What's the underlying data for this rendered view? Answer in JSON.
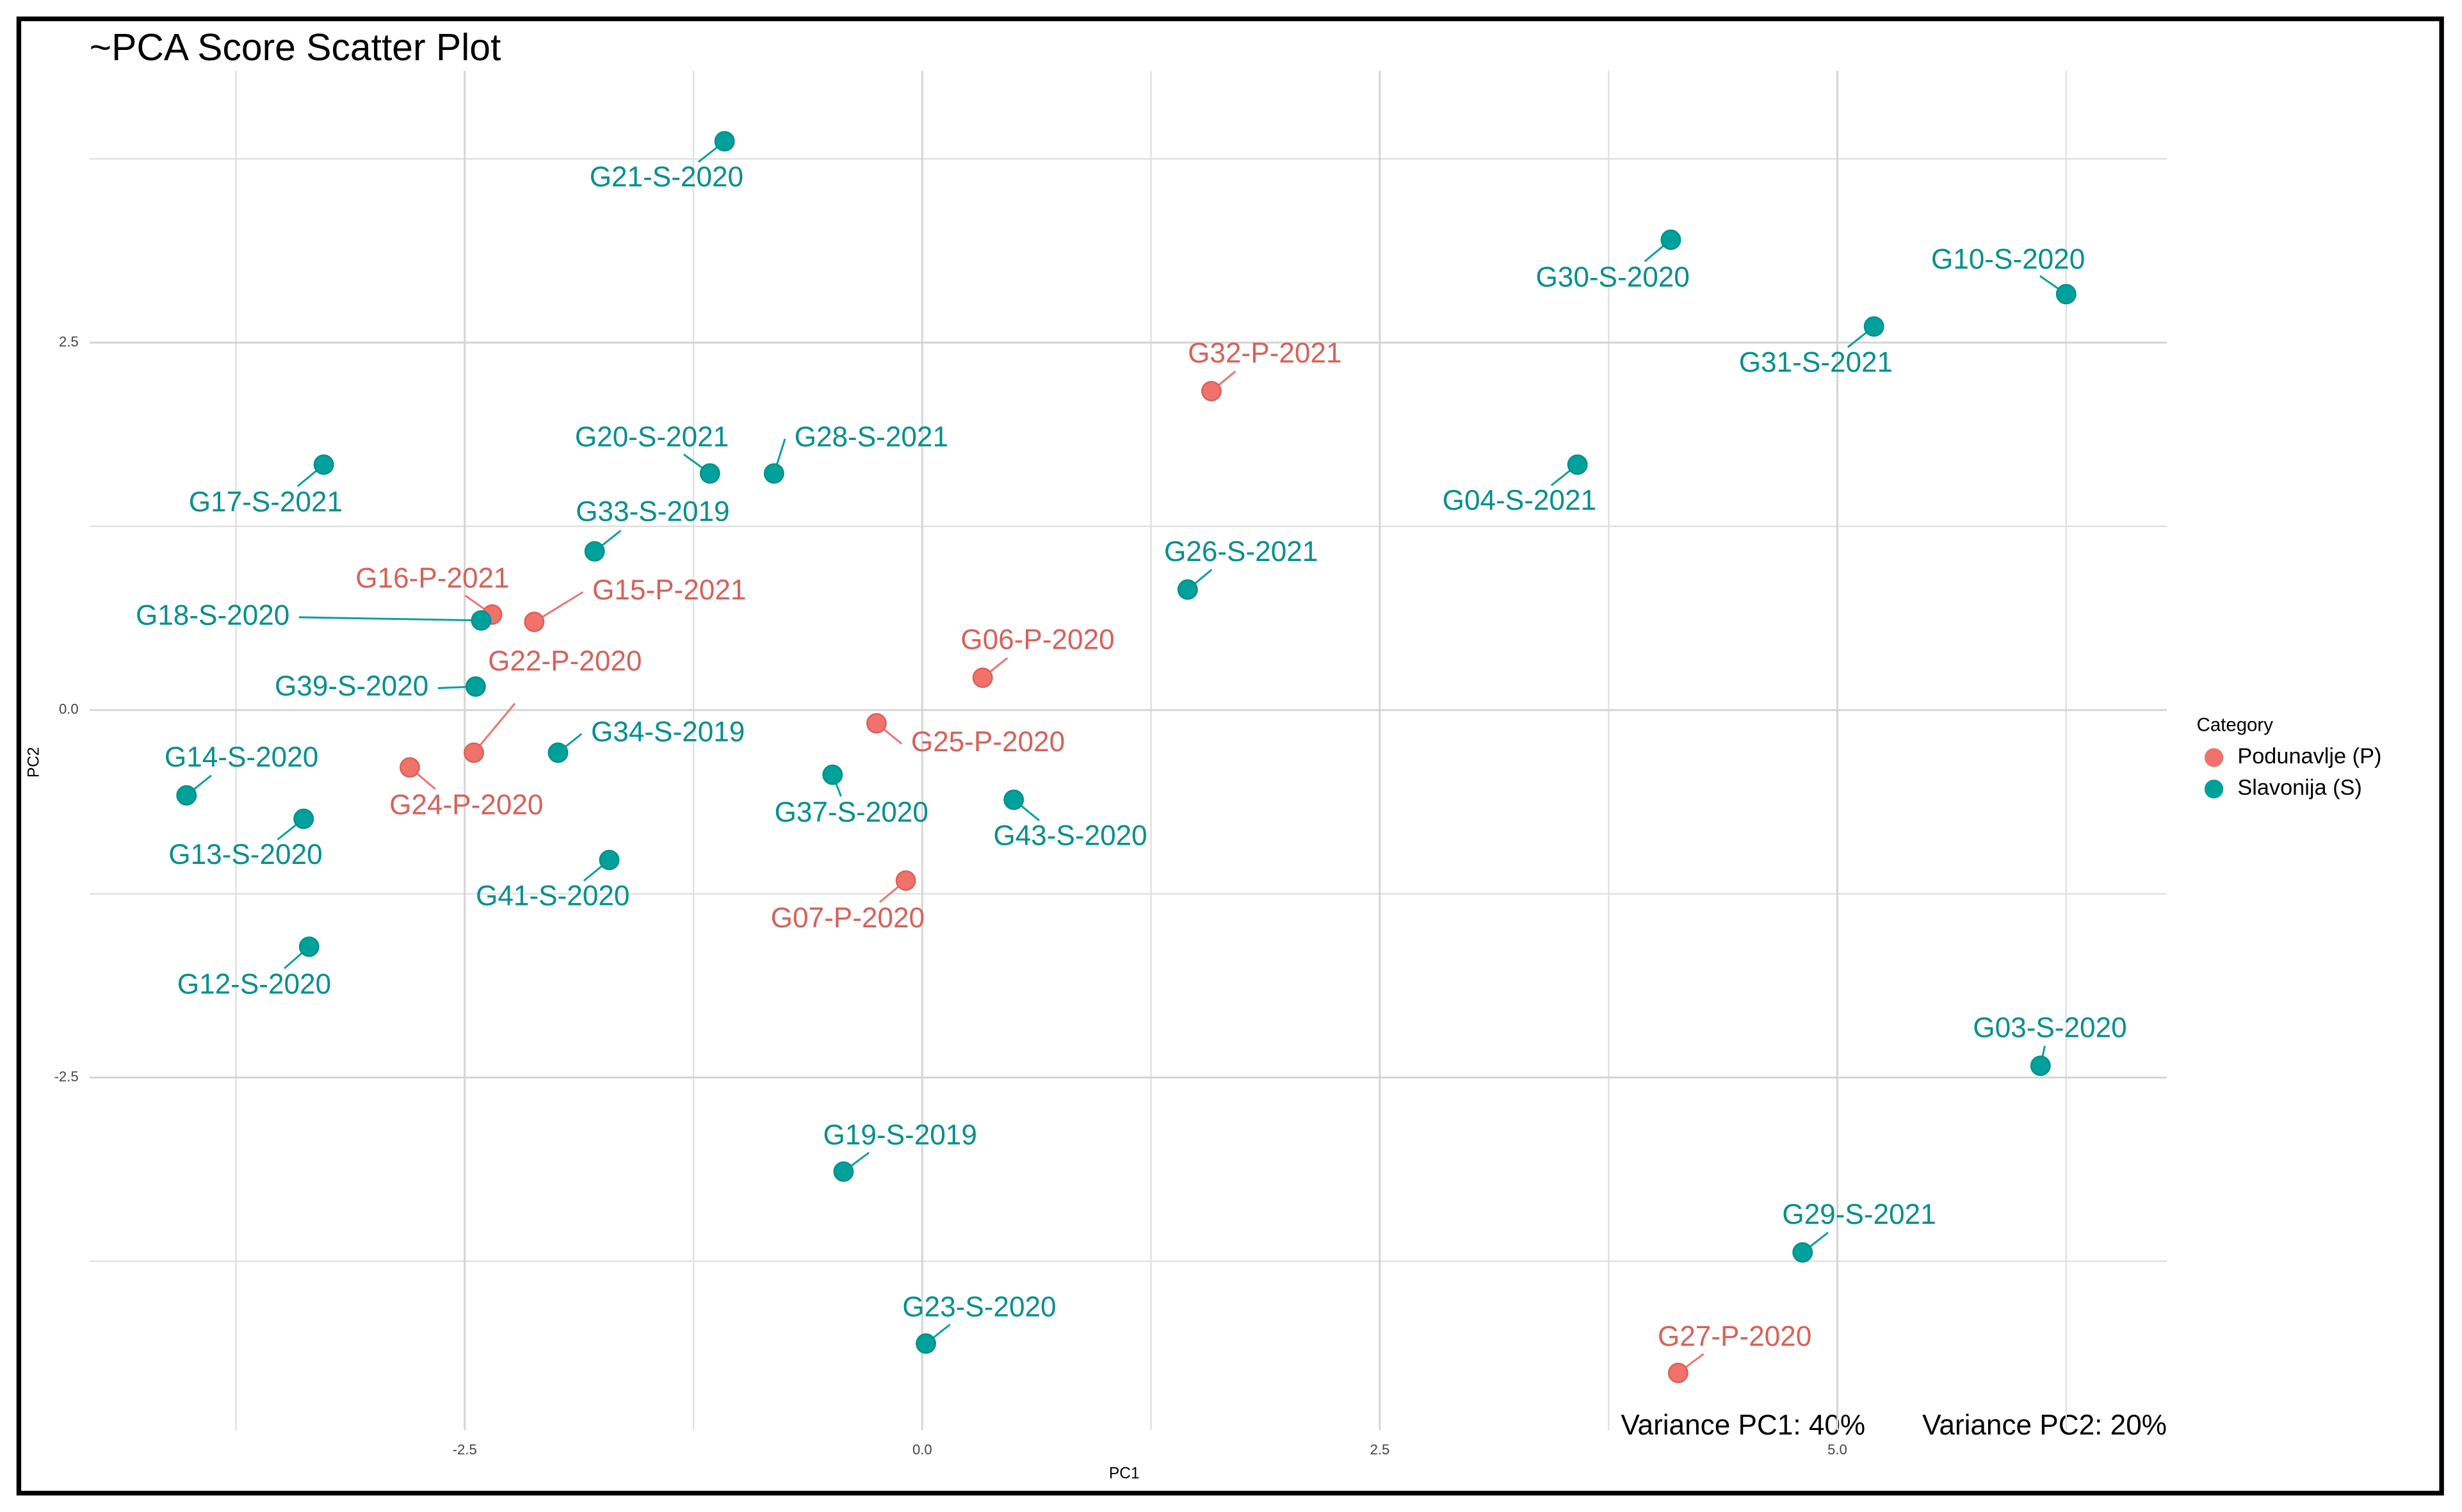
{
  "chart_data": {
    "type": "scatter",
    "title": "~PCA Score Scatter Plot",
    "xlabel": "PC1",
    "ylabel": "PC2",
    "xlim": [
      -4.55,
      6.8
    ],
    "ylim": [
      -4.9,
      4.35
    ],
    "xticks": [
      -2.5,
      {
        "value": 0,
        "label": "0.0"
      },
      2.5,
      {
        "value": 5,
        "label": "5.0"
      }
    ],
    "yticks": [
      -2.5,
      {
        "value": 0,
        "label": "0.0"
      },
      2.5
    ],
    "xminor": [
      -3.75,
      -1.25,
      1.25,
      3.75,
      6.25
    ],
    "yminor": [
      -3.75,
      -1.25,
      1.25,
      3.75
    ],
    "grid": true,
    "legend_title": "Category",
    "legend": "right",
    "annotations": [
      "Variance PC1:  40%",
      "Variance PC2:  20%"
    ],
    "series": [
      {
        "name": "Podunavlje (P)",
        "color": "#F0726B",
        "label_color": "#DB5F58",
        "labels": [
          "G32-P-2021",
          "G16-P-2021",
          "G15-P-2021",
          "G06-P-2020",
          "G25-P-2020",
          "G22-P-2020",
          "G24-P-2020",
          "G07-P-2020",
          "G27-P-2020"
        ],
        "x": [
          1.58,
          -2.35,
          -2.12,
          0.33,
          -0.25,
          -2.45,
          -2.8,
          -0.09,
          4.13
        ],
        "values": [
          2.17,
          0.65,
          0.6,
          0.22,
          -0.09,
          -0.29,
          -0.39,
          -1.16,
          -4.51
        ]
      },
      {
        "name": "Slavonija (S)",
        "color": "#00A19A",
        "label_color": "#00908C",
        "labels": [
          "G21-S-2020",
          "G30-S-2020",
          "G10-S-2020",
          "G31-S-2021",
          "G17-S-2021",
          "G20-S-2021",
          "G28-S-2021",
          "G04-S-2021",
          "G33-S-2019",
          "G26-S-2021",
          "G18-S-2020",
          "G39-S-2020",
          "G34-S-2019",
          "G37-S-2020",
          "G14-S-2020",
          "G43-S-2020",
          "G13-S-2020",
          "G41-S-2020",
          "G12-S-2020",
          "G03-S-2020",
          "G19-S-2019",
          "G29-S-2021",
          "G23-S-2020"
        ],
        "x": [
          -1.08,
          4.09,
          6.25,
          5.2,
          -3.27,
          -1.16,
          -0.81,
          3.58,
          -1.79,
          1.45,
          -2.41,
          -2.44,
          -1.99,
          -0.49,
          -4.02,
          0.5,
          -3.38,
          -1.71,
          -3.35,
          6.11,
          -0.43,
          4.81,
          0.02
        ],
        "values": [
          3.87,
          3.2,
          2.83,
          2.61,
          1.67,
          1.61,
          1.61,
          1.67,
          1.08,
          0.82,
          0.61,
          0.16,
          -0.29,
          -0.44,
          -0.58,
          -0.61,
          -0.74,
          -1.02,
          -1.61,
          -2.42,
          -3.14,
          -3.69,
          -4.31
        ]
      }
    ]
  }
}
